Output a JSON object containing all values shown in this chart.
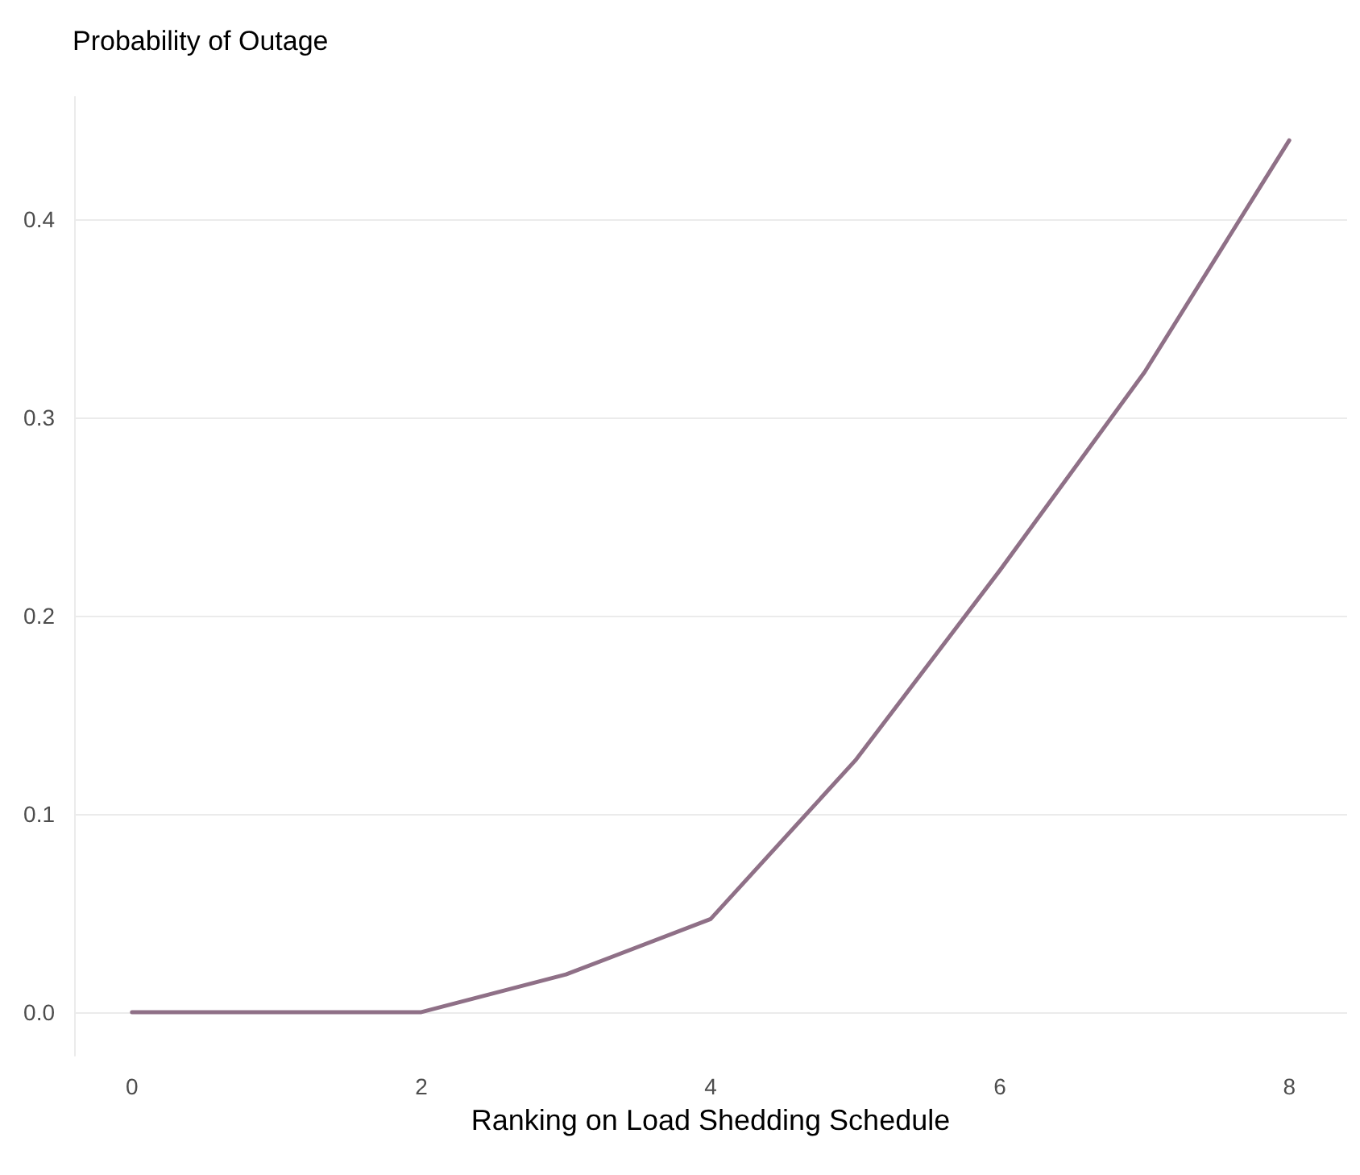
{
  "chart_data": {
    "type": "line",
    "ylabel": "Probability of Outage",
    "xlabel": "Ranking on Load Shedding Schedule",
    "x": [
      0,
      1,
      2,
      3,
      4,
      5,
      6,
      7,
      8
    ],
    "series": [
      {
        "color": "#8f7087",
        "values": [
          0,
          0,
          0,
          0.019,
          0.047,
          0.127,
          0.223,
          0.323,
          0.44
        ]
      }
    ],
    "xlim": [
      -0.4,
      8.4
    ],
    "xticks": [
      0,
      2,
      4,
      6,
      8
    ],
    "ylim": [
      -0.022,
      0.462
    ],
    "yticks": [
      {
        "value": 0,
        "label": "0.0"
      },
      0.1,
      0.2,
      0.3,
      0.4
    ],
    "grid": "y",
    "marker": "none",
    "line_style": "solid"
  }
}
